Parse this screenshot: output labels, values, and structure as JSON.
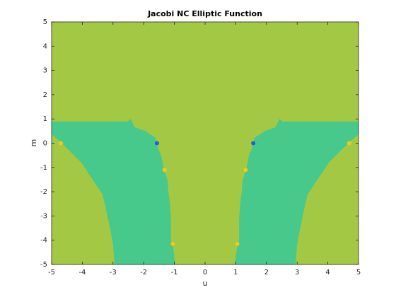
{
  "chart_data": {
    "type": "region",
    "title": "Jacobi NC Elliptic Function",
    "xlabel": "u",
    "ylabel": "m",
    "xlim": [
      -5,
      5
    ],
    "ylim": [
      -5,
      5
    ],
    "xticks": [
      -5,
      -4,
      -3,
      -2,
      -1,
      0,
      1,
      2,
      3,
      4,
      5
    ],
    "yticks": [
      -5,
      -4,
      -3,
      -2,
      -1,
      0,
      1,
      2,
      3,
      4,
      5
    ],
    "background": "#a3c844",
    "series": [
      {
        "color": "#46c98a",
        "x": [
          -5,
          -2.53,
          -2.42,
          -2.3,
          -1.96,
          -1.61,
          -1.57,
          -1.43,
          -1.34,
          -1.22,
          -1.2,
          -1.15,
          -1.11,
          -1.11,
          -1.04,
          -0.97,
          -2.95,
          -3.0,
          -3.11,
          -3.23,
          -3.34,
          -3.57,
          -3.8,
          -4.03,
          -4.38,
          -4.72,
          -5
        ],
        "y": [
          0.89,
          0.89,
          1.0,
          0.66,
          0.51,
          0.22,
          -0.07,
          -0.51,
          -1.09,
          -1.53,
          -1.97,
          -2.41,
          -3.13,
          -4.01,
          -4.3,
          -5,
          -5,
          -4.15,
          -3.43,
          -2.7,
          -2.11,
          -1.68,
          -1.24,
          -0.8,
          -0.36,
          0.07,
          0.36
        ]
      },
      {
        "color": "#46c98a",
        "x": [
          5,
          2.53,
          2.42,
          2.3,
          1.96,
          1.61,
          1.57,
          1.43,
          1.34,
          1.22,
          1.2,
          1.15,
          1.11,
          1.11,
          1.04,
          0.97,
          2.95,
          3.0,
          3.11,
          3.23,
          3.34,
          3.57,
          3.8,
          4.03,
          4.38,
          4.72,
          5
        ],
        "y": [
          0.89,
          0.89,
          1.0,
          0.66,
          0.51,
          0.22,
          -0.07,
          -0.51,
          -1.09,
          -1.53,
          -1.97,
          -2.41,
          -3.13,
          -4.01,
          -4.3,
          -5,
          -5,
          -4.15,
          -3.43,
          -2.7,
          -2.11,
          -1.68,
          -1.24,
          -0.8,
          -0.36,
          0.07,
          0.36
        ]
      }
    ],
    "points": {
      "x": [
        -1.57,
        1.57,
        -1.32,
        1.32,
        -4.7,
        4.7,
        -1.05,
        1.05
      ],
      "y": [
        0.0,
        0.0,
        -1.1,
        -1.1,
        0.0,
        0.0,
        -4.15,
        -4.15
      ],
      "colors": [
        "#1f5fe0",
        "#1f5fe0",
        "#f2c820",
        "#f2c820",
        "#f2c820",
        "#f2c820",
        "#f2c820",
        "#f2c820"
      ]
    }
  }
}
